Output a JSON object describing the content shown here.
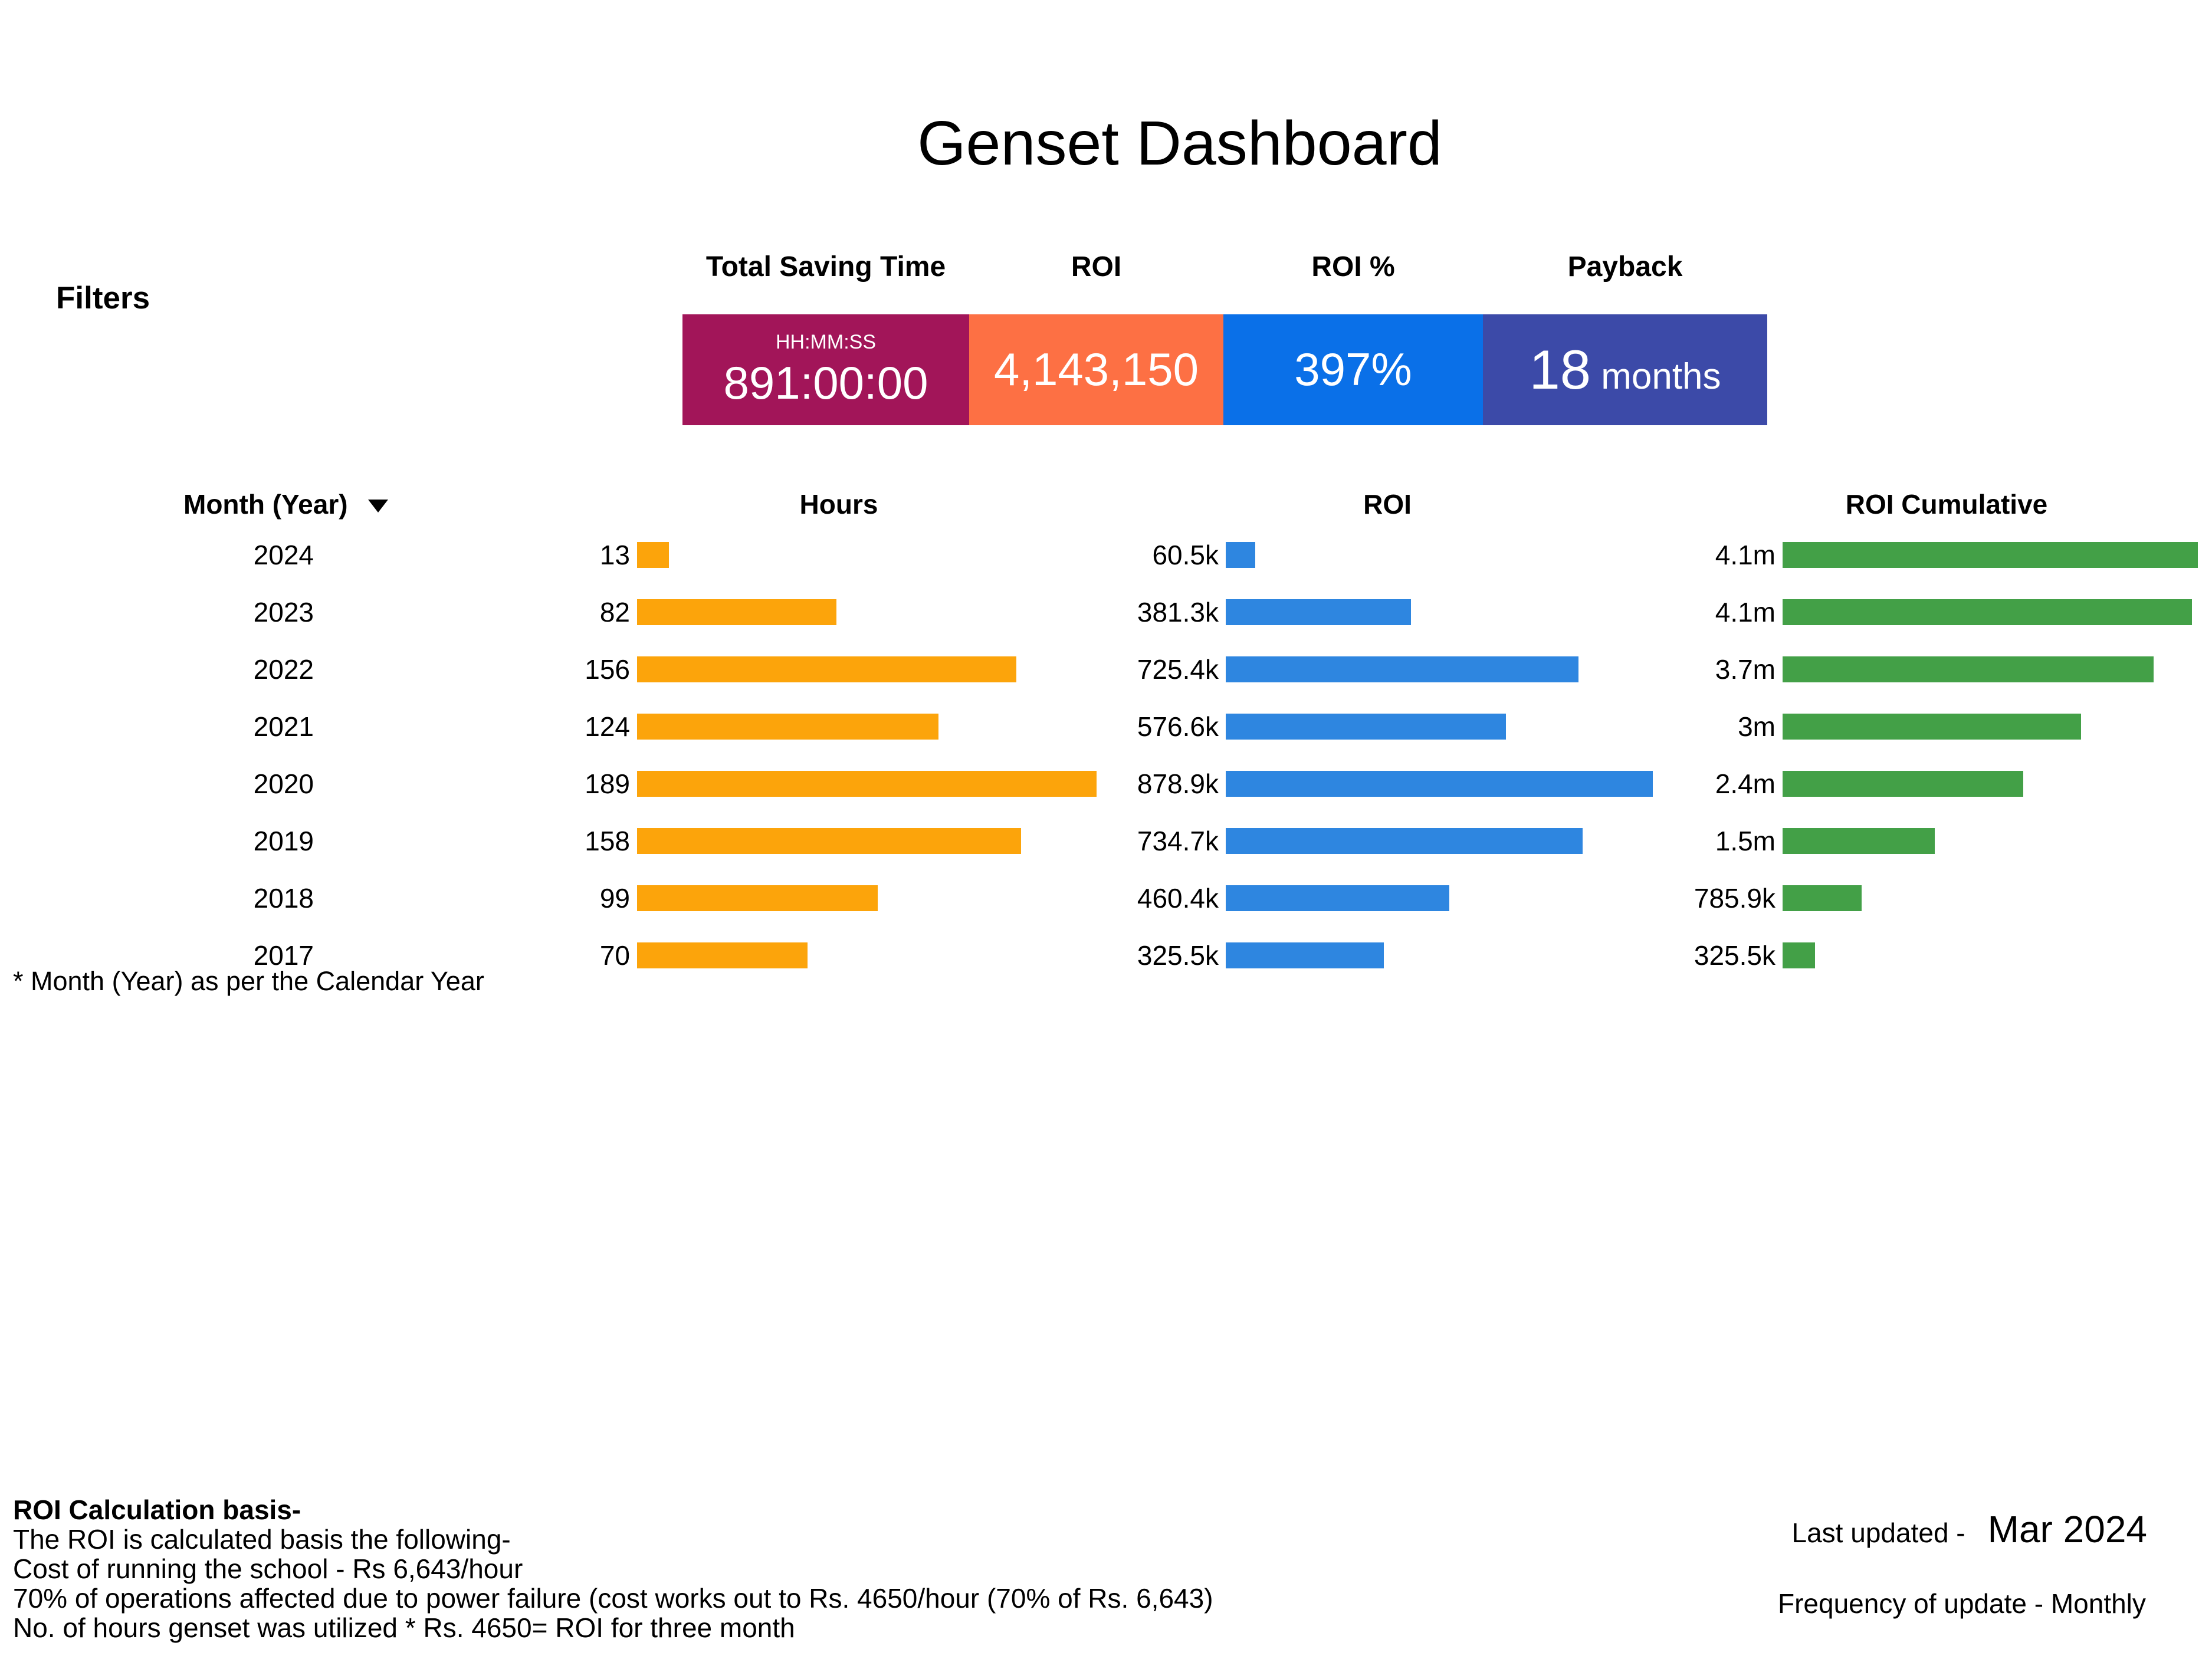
{
  "title": "Genset Dashboard",
  "filters_label": "Filters",
  "kpis": [
    {
      "label": "Total Saving Time",
      "sub": "HH:MM:SS",
      "value": "891:00:00",
      "color": "#A21559"
    },
    {
      "label": "ROI",
      "value": "4,143,150",
      "color": "#FD7044"
    },
    {
      "label": "ROI %",
      "value": "397%",
      "color": "#0A70E8"
    },
    {
      "label": "Payback",
      "value": "18",
      "unit": " months",
      "color": "#3C4AA8"
    }
  ],
  "colors": {
    "hours_bar": "#FCA40B",
    "roi_bar": "#2E86E0",
    "cum_bar": "#43A047"
  },
  "table": {
    "columns": {
      "month": "Month (Year)",
      "hours": "Hours",
      "roi": "ROI",
      "roi_cumulative": "ROI Cumulative"
    },
    "rows": [
      {
        "year": "2024",
        "hours": 13,
        "roi_label": "60.5k",
        "roi_value": 60500,
        "cum_label": "4.1m",
        "cum_value": 4143150
      },
      {
        "year": "2023",
        "hours": 82,
        "roi_label": "381.3k",
        "roi_value": 381300,
        "cum_label": "4.1m",
        "cum_value": 4082700
      },
      {
        "year": "2022",
        "hours": 156,
        "roi_label": "725.4k",
        "roi_value": 725400,
        "cum_label": "3.7m",
        "cum_value": 3701400
      },
      {
        "year": "2021",
        "hours": 124,
        "roi_label": "576.6k",
        "roi_value": 576600,
        "cum_label": "3m",
        "cum_value": 2976100
      },
      {
        "year": "2020",
        "hours": 189,
        "roi_label": "878.9k",
        "roi_value": 878900,
        "cum_label": "2.4m",
        "cum_value": 2399500
      },
      {
        "year": "2019",
        "hours": 158,
        "roi_label": "734.7k",
        "roi_value": 734700,
        "cum_label": "1.5m",
        "cum_value": 1520600
      },
      {
        "year": "2018",
        "hours": 99,
        "roi_label": "460.4k",
        "roi_value": 460400,
        "cum_label": "785.9k",
        "cum_value": 785900
      },
      {
        "year": "2017",
        "hours": 70,
        "roi_label": "325.5k",
        "roi_value": 325500,
        "cum_label": "325.5k",
        "cum_value": 325500
      }
    ]
  },
  "footnote": "* Month (Year) as per the Calendar Year",
  "notes": {
    "title": "ROI Calculation basis-",
    "line1": "The ROI is calculated basis the following-",
    "line2": "Cost of running the school - Rs 6,643/hour",
    "line3": "70% of operations affected due to power failure (cost works out to Rs. 4650/hour (70% of Rs. 6,643)",
    "line4": "No. of hours genset was utilized * Rs. 4650= ROI for three month"
  },
  "updated": {
    "label": "Last updated -",
    "value": "Mar 2024"
  },
  "frequency_text": "Frequency of update - Monthly",
  "chart_data": {
    "type": "bar",
    "orientation": "horizontal",
    "categories": [
      "2024",
      "2023",
      "2022",
      "2021",
      "2020",
      "2019",
      "2018",
      "2017"
    ],
    "series": [
      {
        "name": "Hours",
        "values": [
          13,
          82,
          156,
          124,
          189,
          158,
          99,
          70
        ],
        "color": "#FCA40B"
      },
      {
        "name": "ROI",
        "values": [
          60500,
          381300,
          725400,
          576600,
          878900,
          734700,
          460400,
          325500
        ],
        "labels": [
          "60.5k",
          "381.3k",
          "725.4k",
          "576.6k",
          "878.9k",
          "734.7k",
          "460.4k",
          "325.5k"
        ],
        "color": "#2E86E0"
      },
      {
        "name": "ROI Cumulative",
        "values": [
          4143150,
          4082700,
          3701400,
          2976100,
          2399500,
          1520600,
          785900,
          325500
        ],
        "labels": [
          "4.1m",
          "4.1m",
          "3.7m",
          "3m",
          "2.4m",
          "1.5m",
          "785.9k",
          "325.5k"
        ],
        "color": "#43A047"
      }
    ],
    "kpis": {
      "total_saving_time": "891:00:00",
      "roi": 4143150,
      "roi_pct": "397%",
      "payback_months": 18
    },
    "title": "Genset Dashboard",
    "xlabel": "",
    "ylabel": "Month (Year)",
    "grid": false,
    "legend_position": "none"
  }
}
